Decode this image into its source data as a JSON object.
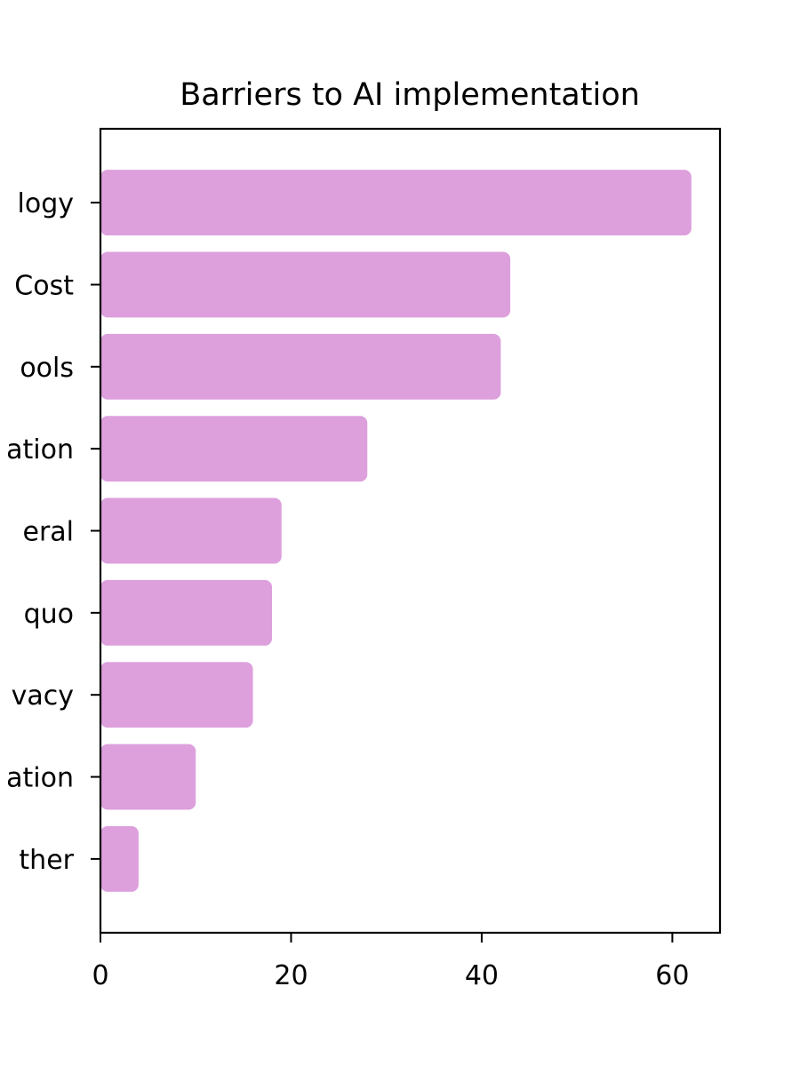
{
  "chart_data": {
    "type": "bar",
    "orientation": "horizontal",
    "title": "Barriers to AI implementation",
    "categories": [
      "logy",
      "Cost",
      "ools",
      "ation",
      "eral",
      "quo",
      "vacy",
      "ation",
      "ther"
    ],
    "values": [
      62,
      43,
      42,
      28,
      19,
      18,
      16,
      10,
      4
    ],
    "xlim": [
      0,
      65
    ],
    "xticks": [
      0,
      20,
      40,
      60
    ],
    "xlabel": "",
    "ylabel": "",
    "grid": false,
    "bar_color": "#dda0dd"
  }
}
